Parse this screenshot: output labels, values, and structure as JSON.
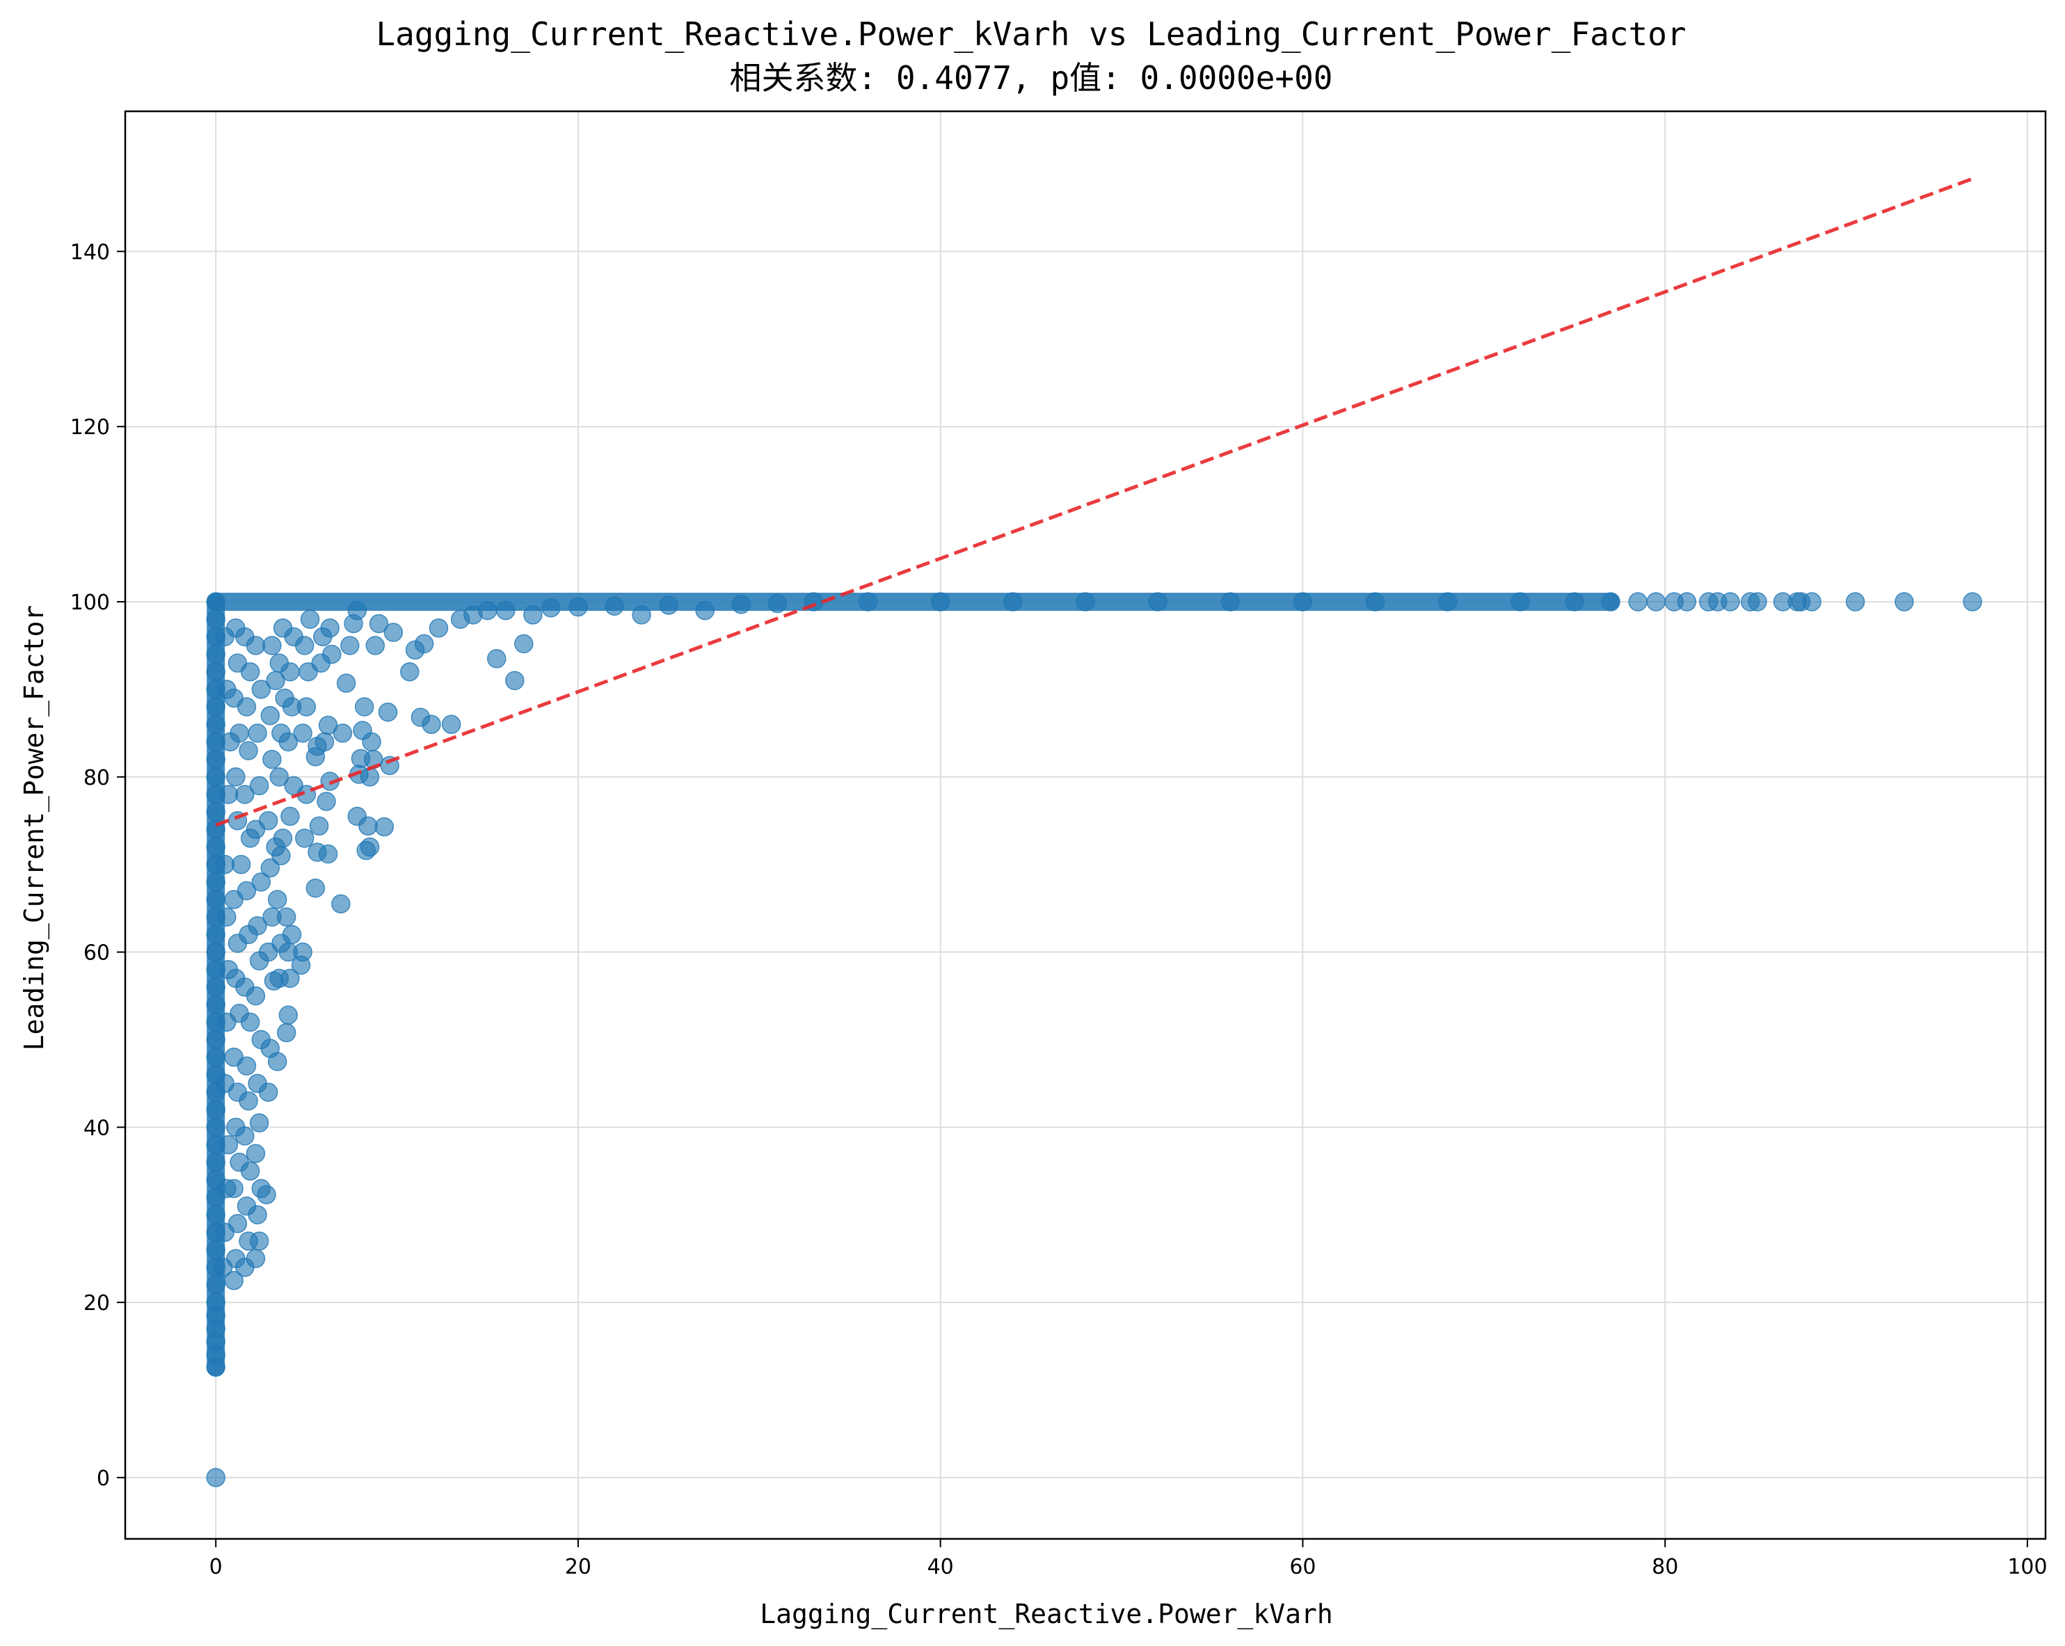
{
  "chart_data": {
    "type": "scatter",
    "title": "Lagging_Current_Reactive.Power_kVarh vs Leading_Current_Power_Factor",
    "subtitle": "相关系数: 0.4077, p值: 0.0000e+00",
    "xlabel": "Lagging_Current_Reactive.Power_kVarh",
    "ylabel": "Leading_Current_Power_Factor",
    "xlim": [
      -5,
      101
    ],
    "ylim": [
      -7,
      156
    ],
    "xticks": [
      0,
      20,
      40,
      60,
      80,
      100
    ],
    "yticks": [
      0,
      20,
      40,
      60,
      80,
      100,
      120,
      140
    ],
    "grid": true,
    "point_color": "#1f77b4",
    "trend_color": "#e8262a",
    "trendline": {
      "x": [
        0,
        96.97
      ],
      "y": [
        74.5,
        148.3
      ],
      "style": "dashed"
    },
    "points": [
      [
        0,
        0
      ],
      [
        0,
        12.6
      ],
      [
        0,
        14
      ],
      [
        0,
        15.5
      ],
      [
        0,
        17
      ],
      [
        0,
        18.5
      ],
      [
        0,
        20
      ],
      [
        0,
        22
      ],
      [
        0,
        24
      ],
      [
        0,
        26
      ],
      [
        0,
        28
      ],
      [
        0,
        30
      ],
      [
        0,
        32
      ],
      [
        0,
        34
      ],
      [
        0,
        36
      ],
      [
        0,
        38
      ],
      [
        0,
        40
      ],
      [
        0,
        42
      ],
      [
        0,
        44
      ],
      [
        0,
        46
      ],
      [
        0,
        48
      ],
      [
        0,
        50
      ],
      [
        0,
        52
      ],
      [
        0,
        54
      ],
      [
        0,
        56
      ],
      [
        0,
        58
      ],
      [
        0,
        60
      ],
      [
        0,
        62
      ],
      [
        0,
        64
      ],
      [
        0,
        66
      ],
      [
        0,
        68
      ],
      [
        0,
        70
      ],
      [
        0,
        72
      ],
      [
        0,
        74
      ],
      [
        0,
        76
      ],
      [
        0,
        78
      ],
      [
        0,
        80
      ],
      [
        0,
        82
      ],
      [
        0,
        84
      ],
      [
        0,
        86
      ],
      [
        0,
        88
      ],
      [
        0,
        90
      ],
      [
        0,
        92
      ],
      [
        0,
        94
      ],
      [
        0,
        96
      ],
      [
        0,
        98
      ],
      [
        0,
        100
      ],
      [
        0.4,
        24
      ],
      [
        0.5,
        28
      ],
      [
        0.6,
        33
      ],
      [
        0.7,
        38
      ],
      [
        0.5,
        45
      ],
      [
        0.6,
        52
      ],
      [
        0.7,
        58
      ],
      [
        0.6,
        64
      ],
      [
        0.5,
        70
      ],
      [
        0.7,
        78
      ],
      [
        0.8,
        84
      ],
      [
        0.6,
        90
      ],
      [
        0.5,
        96
      ],
      [
        1.0,
        22.5
      ],
      [
        1.1,
        25
      ],
      [
        1.2,
        29
      ],
      [
        1.0,
        33
      ],
      [
        1.3,
        36
      ],
      [
        1.1,
        40
      ],
      [
        1.2,
        44
      ],
      [
        1.0,
        48
      ],
      [
        1.3,
        53
      ],
      [
        1.1,
        57
      ],
      [
        1.2,
        61
      ],
      [
        1.0,
        66
      ],
      [
        1.4,
        70
      ],
      [
        1.2,
        75
      ],
      [
        1.1,
        80
      ],
      [
        1.3,
        85
      ],
      [
        1.0,
        89
      ],
      [
        1.2,
        93
      ],
      [
        1.1,
        97
      ],
      [
        1.6,
        24
      ],
      [
        1.8,
        27
      ],
      [
        1.7,
        31
      ],
      [
        1.9,
        35
      ],
      [
        1.6,
        39
      ],
      [
        1.8,
        43
      ],
      [
        1.7,
        47
      ],
      [
        1.9,
        52
      ],
      [
        1.6,
        56
      ],
      [
        1.8,
        62
      ],
      [
        1.7,
        67
      ],
      [
        1.9,
        73
      ],
      [
        1.6,
        78
      ],
      [
        1.8,
        83
      ],
      [
        1.7,
        88
      ],
      [
        1.9,
        92
      ],
      [
        1.6,
        96
      ],
      [
        2.2,
        25
      ],
      [
        2.4,
        27
      ],
      [
        2.3,
        30
      ],
      [
        2.5,
        33
      ],
      [
        2.2,
        37
      ],
      [
        2.4,
        40.5
      ],
      [
        2.3,
        45
      ],
      [
        2.5,
        50
      ],
      [
        2.2,
        55
      ],
      [
        2.4,
        59
      ],
      [
        2.3,
        63
      ],
      [
        2.5,
        68
      ],
      [
        2.2,
        74
      ],
      [
        2.4,
        79
      ],
      [
        2.3,
        85
      ],
      [
        2.5,
        90
      ],
      [
        2.2,
        95
      ],
      [
        2.8,
        32.3
      ],
      [
        2.9,
        44
      ],
      [
        3.0,
        49
      ],
      [
        3.2,
        56.7
      ],
      [
        2.9,
        60
      ],
      [
        3.1,
        64
      ],
      [
        3.0,
        69.6
      ],
      [
        3.3,
        72
      ],
      [
        2.9,
        75
      ],
      [
        3.1,
        82
      ],
      [
        3.0,
        87
      ],
      [
        3.3,
        91
      ],
      [
        3.1,
        95
      ],
      [
        3.4,
        47.5
      ],
      [
        3.5,
        57
      ],
      [
        3.6,
        61
      ],
      [
        3.4,
        66
      ],
      [
        3.6,
        71
      ],
      [
        3.7,
        73
      ],
      [
        3.5,
        80
      ],
      [
        3.6,
        85
      ],
      [
        3.8,
        89
      ],
      [
        3.5,
        93
      ],
      [
        3.7,
        97
      ],
      [
        3.9,
        50.8
      ],
      [
        4.0,
        52.8
      ],
      [
        4.1,
        57
      ],
      [
        4.0,
        60
      ],
      [
        4.2,
        62
      ],
      [
        3.9,
        64
      ],
      [
        4.1,
        75.5
      ],
      [
        4.3,
        79
      ],
      [
        4.0,
        84
      ],
      [
        4.2,
        88
      ],
      [
        4.1,
        92
      ],
      [
        4.3,
        96
      ],
      [
        4.7,
        58.5
      ],
      [
        4.8,
        60
      ],
      [
        4.9,
        73
      ],
      [
        5.0,
        78
      ],
      [
        4.8,
        85
      ],
      [
        5.0,
        88
      ],
      [
        5.1,
        92
      ],
      [
        4.9,
        95
      ],
      [
        5.2,
        98
      ],
      [
        5.5,
        67.3
      ],
      [
        5.6,
        71.4
      ],
      [
        5.7,
        74.4
      ],
      [
        5.5,
        82.3
      ],
      [
        5.6,
        83.5
      ],
      [
        5.8,
        93
      ],
      [
        5.9,
        96
      ],
      [
        6.2,
        71.2
      ],
      [
        6.1,
        77.2
      ],
      [
        6.3,
        79.5
      ],
      [
        6.0,
        84
      ],
      [
        6.2,
        85.9
      ],
      [
        6.4,
        94
      ],
      [
        6.3,
        97
      ],
      [
        6.9,
        65.5
      ],
      [
        7.0,
        85
      ],
      [
        7.2,
        90.7
      ],
      [
        7.4,
        95
      ],
      [
        7.6,
        97.5
      ],
      [
        7.8,
        99
      ],
      [
        7.8,
        75.5
      ],
      [
        7.9,
        80.3
      ],
      [
        8.0,
        82.1
      ],
      [
        8.1,
        85.3
      ],
      [
        8.2,
        88
      ],
      [
        8.3,
        71.6
      ],
      [
        8.5,
        72
      ],
      [
        8.4,
        74.4
      ],
      [
        8.5,
        80
      ],
      [
        8.6,
        84
      ],
      [
        8.7,
        82
      ],
      [
        8.8,
        95
      ],
      [
        9.0,
        97.5
      ],
      [
        9.3,
        74.3
      ],
      [
        9.6,
        81.3
      ],
      [
        9.5,
        87.4
      ],
      [
        9.8,
        96.5
      ],
      [
        10.7,
        92
      ],
      [
        11.0,
        94.5
      ],
      [
        11.3,
        86.8
      ],
      [
        11.5,
        95.2
      ],
      [
        11.9,
        86
      ],
      [
        12.3,
        97
      ],
      [
        13.0,
        86
      ],
      [
        13.5,
        98
      ],
      [
        14.2,
        98.5
      ],
      [
        15.0,
        99
      ],
      [
        15.5,
        93.5
      ],
      [
        16.0,
        99
      ],
      [
        16.5,
        91
      ],
      [
        17.0,
        95.2
      ],
      [
        17.5,
        98.5
      ],
      [
        18.5,
        99.3
      ],
      [
        20.0,
        99.4
      ],
      [
        22.0,
        99.5
      ],
      [
        23.5,
        98.5
      ],
      [
        25.0,
        99.6
      ],
      [
        27.0,
        99
      ],
      [
        29.0,
        99.7
      ],
      [
        31.0,
        99.8
      ],
      [
        33,
        100
      ],
      [
        36,
        100
      ],
      [
        40,
        100
      ],
      [
        44,
        100
      ],
      [
        48,
        100
      ],
      [
        52,
        100
      ],
      [
        56,
        100
      ],
      [
        60,
        100
      ],
      [
        64,
        100
      ],
      [
        68,
        100
      ],
      [
        72,
        100
      ],
      [
        75,
        100
      ],
      [
        77,
        100
      ],
      [
        78.5,
        100
      ],
      [
        79.5,
        100
      ],
      [
        80.5,
        100
      ],
      [
        81.2,
        100
      ],
      [
        82.4,
        100
      ],
      [
        82.9,
        100
      ],
      [
        83.6,
        100
      ],
      [
        84.7,
        100
      ],
      [
        85.1,
        100
      ],
      [
        86.5,
        100
      ],
      [
        87.3,
        100
      ],
      [
        87.5,
        100
      ],
      [
        88.1,
        100
      ],
      [
        90.5,
        100
      ],
      [
        93.2,
        100
      ],
      [
        96.97,
        100
      ]
    ]
  }
}
